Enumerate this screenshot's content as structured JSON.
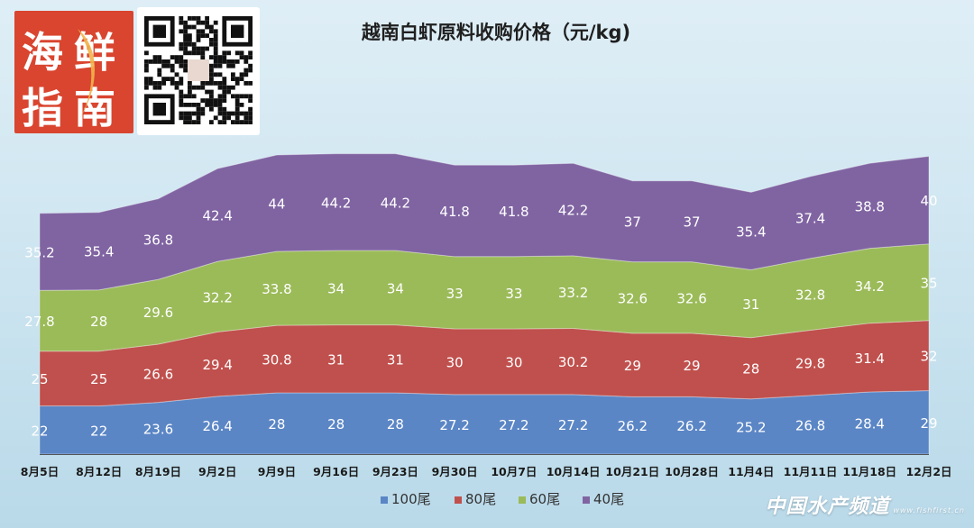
{
  "branding": {
    "logo_text": "海鲜指南",
    "watermark_text": "中国水产频道",
    "watermark_sub": "www.fishfirst.cn"
  },
  "chart_data": {
    "type": "area",
    "stacked": true,
    "title": "越南白虾原料收购价格（元/kg)",
    "categories": [
      "8月5日",
      "8月12日",
      "8月19日",
      "9月2日",
      "9月9日",
      "9月16日",
      "9月23日",
      "9月30日",
      "10月7日",
      "10月14日",
      "10月21日",
      "10月28日",
      "11月4日",
      "11月11日",
      "11月18日",
      "12月2日"
    ],
    "series": [
      {
        "name": "100尾",
        "color": "#5b86c5",
        "values": [
          22,
          22,
          23.6,
          26.4,
          28,
          28,
          28,
          27.2,
          27.2,
          27.2,
          26.2,
          26.2,
          25.2,
          26.8,
          28.4,
          29
        ]
      },
      {
        "name": "80尾",
        "color": "#c0504d",
        "values": [
          25,
          25,
          26.6,
          29.4,
          30.8,
          31,
          31,
          30,
          30,
          30.2,
          29,
          29,
          28,
          29.8,
          31.4,
          32
        ]
      },
      {
        "name": "60尾",
        "color": "#9bbb59",
        "values": [
          27.8,
          28,
          29.6,
          32.2,
          33.8,
          34,
          34,
          33,
          33,
          33.2,
          32.6,
          32.6,
          31,
          32.8,
          34.2,
          35
        ]
      },
      {
        "name": "40尾",
        "color": "#8064a2",
        "values": [
          35.2,
          35.4,
          36.8,
          42.4,
          44,
          44.2,
          44.2,
          41.8,
          41.8,
          42.2,
          37,
          37,
          35.4,
          37.4,
          38.8,
          40
        ]
      }
    ],
    "legend_position": "bottom",
    "grid": false
  }
}
